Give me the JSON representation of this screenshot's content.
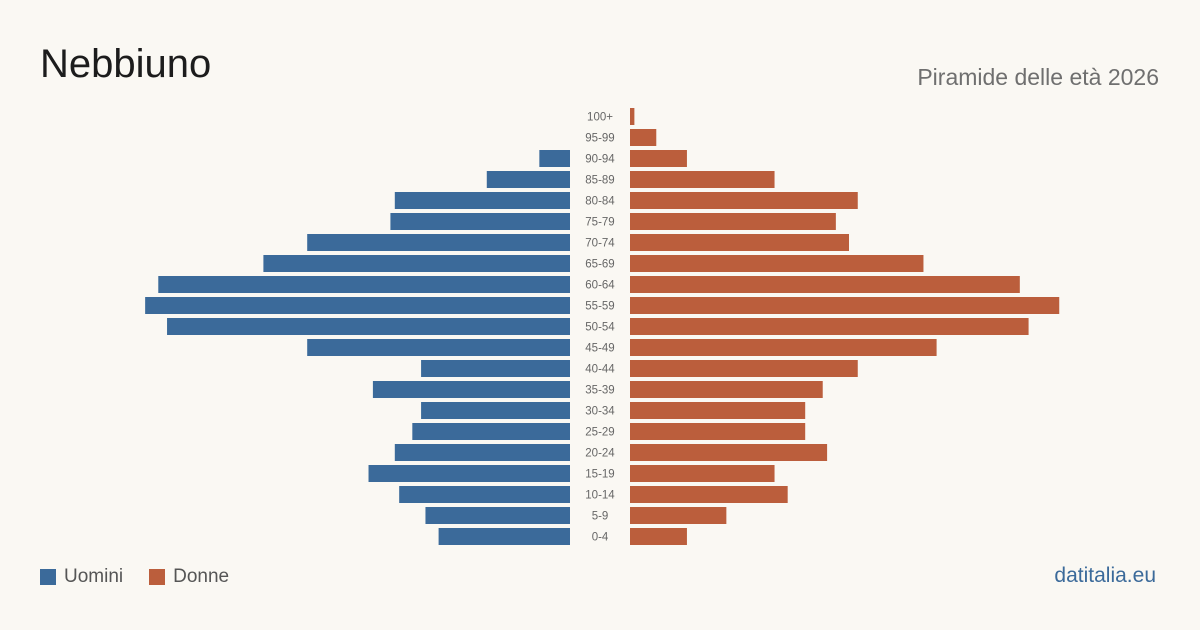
{
  "header": {
    "title": "Nebbiuno",
    "subtitle": "Piramide delle età 2026"
  },
  "footer": {
    "source": "datitalia.eu"
  },
  "colors": {
    "men": "#3b6a9a",
    "women": "#bb5e3c"
  },
  "chart_data": {
    "type": "bar",
    "orientation": "horizontal-population-pyramid",
    "categories": [
      "100+",
      "95-99",
      "90-94",
      "85-89",
      "80-84",
      "75-79",
      "70-74",
      "65-69",
      "60-64",
      "55-59",
      "50-54",
      "45-49",
      "40-44",
      "35-39",
      "30-34",
      "25-29",
      "20-24",
      "15-19",
      "10-14",
      "5-9",
      "0-4"
    ],
    "series": [
      {
        "name": "Uomini",
        "values": [
          0,
          0,
          7,
          19,
          40,
          41,
          60,
          70,
          94,
          97,
          92,
          60,
          34,
          45,
          34,
          36,
          40,
          46,
          39,
          33,
          30
        ]
      },
      {
        "name": "Donne",
        "values": [
          1,
          6,
          13,
          33,
          52,
          47,
          50,
          67,
          89,
          98,
          91,
          70,
          52,
          44,
          40,
          40,
          45,
          33,
          36,
          22,
          13
        ]
      }
    ],
    "legend": "bottom-left",
    "grid": false
  }
}
